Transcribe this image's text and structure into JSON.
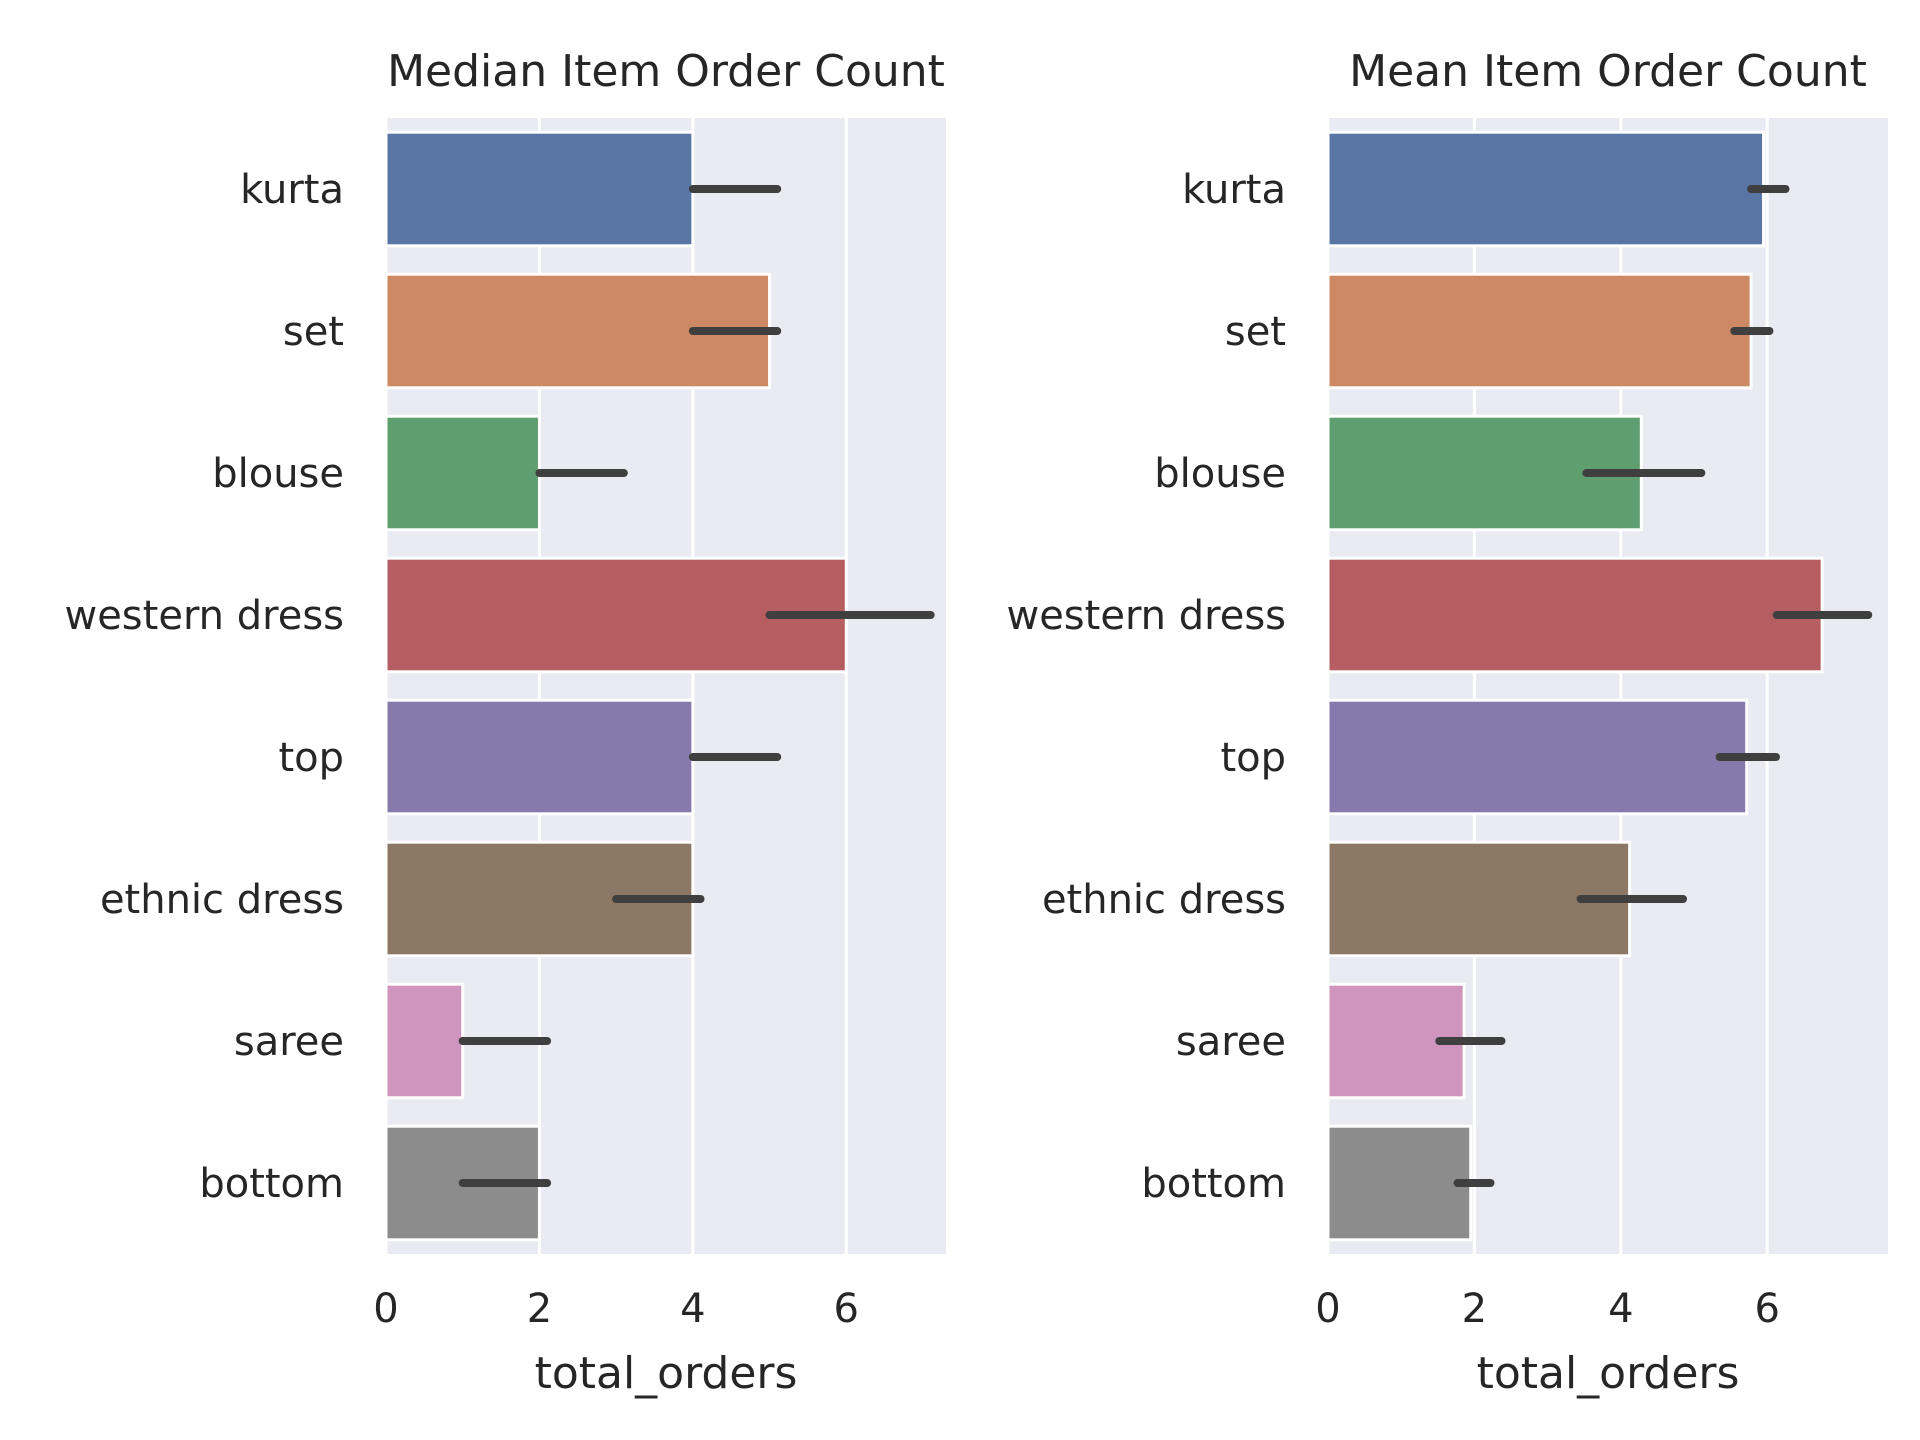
{
  "chart_data": [
    {
      "type": "bar",
      "orientation": "horizontal",
      "title": "Median Item Order Count",
      "xlabel": "total_orders",
      "ylabel": "",
      "categories": [
        "kurta",
        "set",
        "blouse",
        "western dress",
        "top",
        "ethnic dress",
        "saree",
        "bottom"
      ],
      "values": [
        4,
        5,
        2,
        6,
        4,
        4,
        1,
        2
      ],
      "error_bars": [
        [
          4,
          5.1
        ],
        [
          4,
          5.1
        ],
        [
          2,
          3.1
        ],
        [
          5,
          7.1
        ],
        [
          4,
          5.1
        ],
        [
          3,
          4.1
        ],
        [
          1,
          2.1
        ],
        [
          1,
          2.1
        ]
      ],
      "xlim": [
        0,
        7.3
      ],
      "xticks": [
        0,
        2,
        4,
        6
      ],
      "grid": true
    },
    {
      "type": "bar",
      "orientation": "horizontal",
      "title": "Mean Item Order Count",
      "xlabel": "total_orders",
      "ylabel": "",
      "categories": [
        "kurta",
        "set",
        "blouse",
        "western dress",
        "top",
        "ethnic dress",
        "saree",
        "bottom"
      ],
      "values": [
        5.95,
        5.78,
        4.28,
        6.75,
        5.72,
        4.12,
        1.86,
        1.95
      ],
      "error_bars": [
        [
          5.78,
          6.25
        ],
        [
          5.55,
          6.03
        ],
        [
          3.53,
          5.1
        ],
        [
          6.13,
          7.38
        ],
        [
          5.35,
          6.12
        ],
        [
          3.45,
          4.85
        ],
        [
          1.52,
          2.37
        ],
        [
          1.77,
          2.22
        ]
      ],
      "xlim": [
        0,
        7.65
      ],
      "xticks": [
        0,
        2,
        4,
        6
      ],
      "grid": true
    }
  ],
  "colors": {
    "plot_background": "#eaeaf2",
    "grid": "#ffffff",
    "error_bar": "#3f3f3f",
    "bars": [
      "#5875a4",
      "#cc8963",
      "#5f9e6e",
      "#b55d60",
      "#857aab",
      "#8d7866",
      "#d095bf",
      "#8c8c8c"
    ]
  }
}
